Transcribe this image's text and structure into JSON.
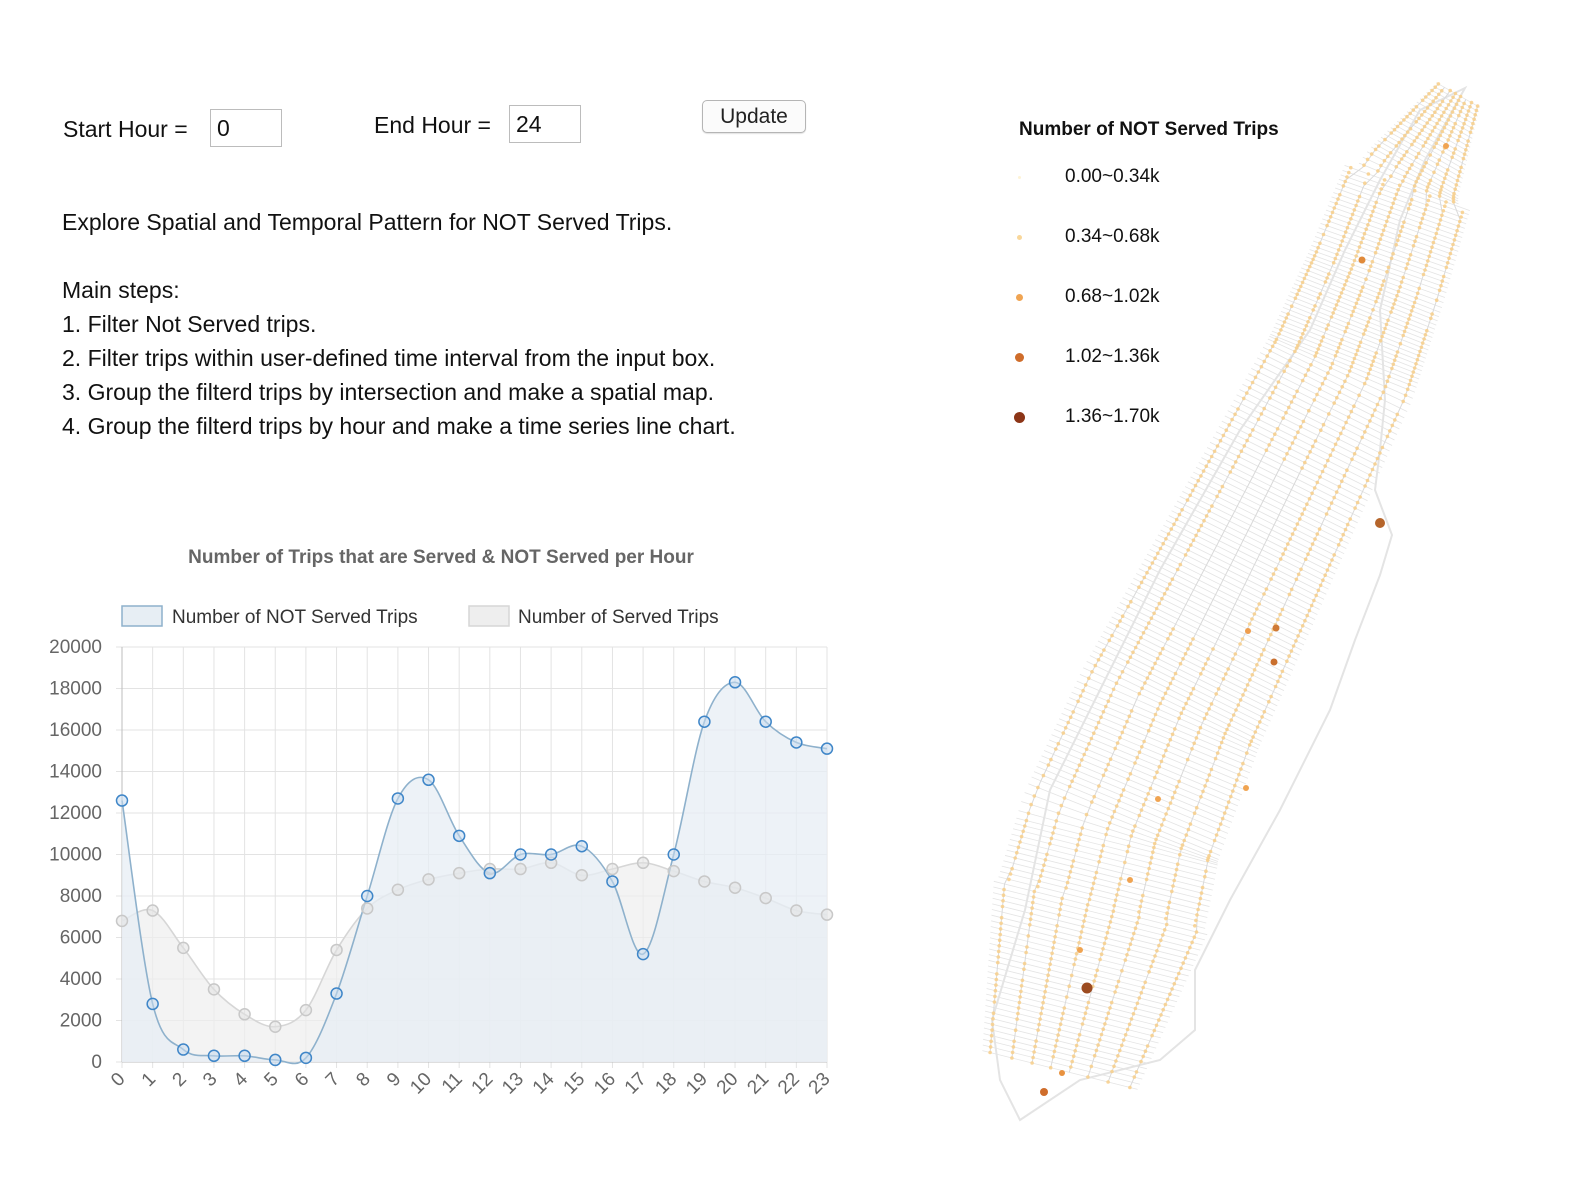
{
  "controls": {
    "start_label": "Start Hour =",
    "start_value": "0",
    "end_label": "End Hour =",
    "end_value": "24",
    "update_label": "Update"
  },
  "description": {
    "intro": "Explore Spatial and Temporal Pattern for NOT Served Trips.",
    "steps_title": "Main steps:",
    "steps": [
      "1. Filter Not Served trips.",
      "2. Filter trips within user-defined time interval from the input box.",
      "3. Group the filterd trips by intersection and make a spatial map.",
      "4. Group the filterd trips by hour and make a time series line chart."
    ]
  },
  "colors": {
    "not_served_line": "#8eb1cc",
    "not_served_fill": "#e7eef4",
    "not_served_point": "#3f86c8",
    "served_line": "#d6d6d6",
    "served_fill": "#eeeeee",
    "served_point": "#c8c8c8",
    "grid": "#e3e3e3",
    "map_street": "#e4e4e4",
    "map_point": "#f8cf8a"
  },
  "chart_data": {
    "type": "line",
    "title": "Number of Trips that are Served & NOT Served per Hour",
    "x": [
      "0",
      "1",
      "2",
      "3",
      "4",
      "5",
      "6",
      "7",
      "8",
      "9",
      "10",
      "11",
      "12",
      "13",
      "14",
      "15",
      "16",
      "17",
      "18",
      "19",
      "20",
      "21",
      "22",
      "23"
    ],
    "ylim": [
      0,
      20000
    ],
    "yticks": [
      "0",
      "2000",
      "4000",
      "6000",
      "8000",
      "10000",
      "12000",
      "14000",
      "16000",
      "18000",
      "20000"
    ],
    "grid": true,
    "legend_position": "top",
    "series": [
      {
        "name": "Number of NOT Served Trips",
        "values": [
          12600,
          2800,
          600,
          300,
          300,
          100,
          200,
          3300,
          8000,
          12700,
          13600,
          10900,
          9100,
          10000,
          10000,
          10400,
          8700,
          5200,
          10000,
          16400,
          18300,
          16400,
          15400,
          15100
        ]
      },
      {
        "name": "Number of Served Trips",
        "values": [
          6800,
          7300,
          5500,
          3500,
          2300,
          1700,
          2500,
          5400,
          7400,
          8300,
          8800,
          9100,
          9300,
          9300,
          9600,
          9000,
          9300,
          9600,
          9200,
          8700,
          8400,
          7900,
          7300,
          7100
        ]
      }
    ]
  },
  "map": {
    "legend_title": "Number of NOT Served Trips",
    "legend": [
      {
        "label": "0.00~0.34k",
        "color": "#fdf3d6"
      },
      {
        "label": "0.34~0.68k",
        "color": "#f9d79a"
      },
      {
        "label": "0.68~1.02k",
        "color": "#f0a452"
      },
      {
        "label": "1.02~1.36k",
        "color": "#cf6d2b"
      },
      {
        "label": "1.36~1.70k",
        "color": "#8c3517"
      }
    ]
  }
}
